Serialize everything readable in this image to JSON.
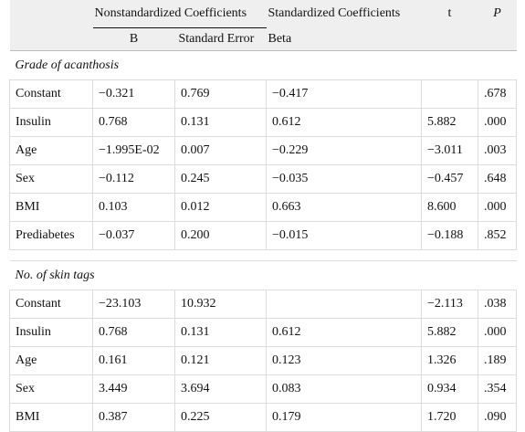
{
  "header": {
    "group1": "Nonstandardized Coefficients",
    "group2": "Standardized Coefficients",
    "t": "t",
    "p": "P",
    "b": "B",
    "se": "Standard Error",
    "beta": "Beta"
  },
  "sections": [
    {
      "title": "Grade of acanthosis",
      "rows": [
        [
          "Constant",
          "−0.321",
          "0.769",
          "−0.417",
          null,
          ".678"
        ],
        [
          "Insulin",
          "0.768",
          "0.131",
          "0.612",
          "5.882",
          ".000"
        ],
        [
          "Age",
          "−1.995E-02",
          "0.007",
          "−0.229",
          "−3.011",
          ".003"
        ],
        [
          "Sex",
          "−0.112",
          "0.245",
          "−0.035",
          "−0.457",
          ".648"
        ],
        [
          "BMI",
          "0.103",
          "0.012",
          "0.663",
          "8.600",
          ".000"
        ],
        [
          "Prediabetes",
          "−0.037",
          "0.200",
          "−0.015",
          "−0.188",
          ".852"
        ]
      ]
    },
    {
      "title": "No. of skin tags",
      "rows": [
        [
          "Constant",
          "−23.103",
          "10.932",
          null,
          "−2.113",
          ".038"
        ],
        [
          "Insulin",
          "0.768",
          "0.131",
          "0.612",
          "5.882",
          ".000"
        ],
        [
          "Age",
          "0.161",
          "0.121",
          "0.123",
          "1.326",
          ".189"
        ],
        [
          "Sex",
          "3.449",
          "3.694",
          "0.083",
          "0.934",
          ".354"
        ],
        [
          "BMI",
          "0.387",
          "0.225",
          "0.179",
          "1.720",
          ".090"
        ]
      ]
    }
  ]
}
